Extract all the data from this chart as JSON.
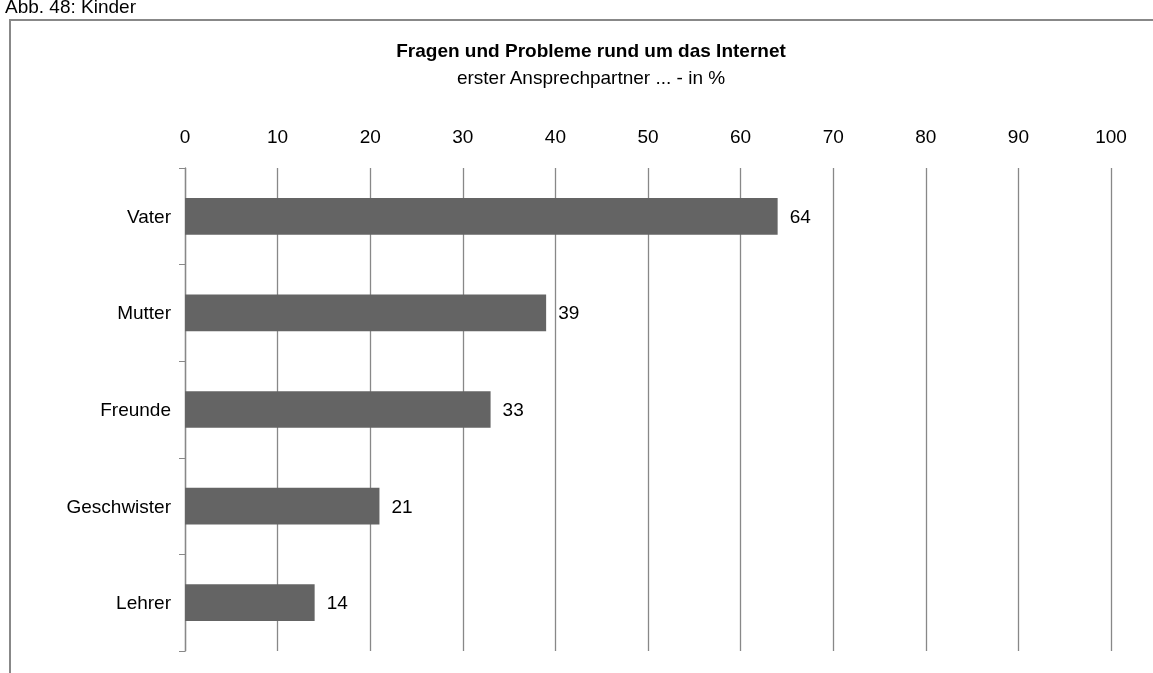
{
  "chart_data": {
    "type": "bar",
    "orientation": "horizontal",
    "title": "Fragen und Probleme rund um das Internet",
    "subtitle": "erster Ansprechpartner ... - in %",
    "annotations": [
      "Abb. 48: Kinder"
    ],
    "categories": [
      "Vater",
      "Mutter",
      "Freunde",
      "Geschwister",
      "Lehrer"
    ],
    "values": [
      64,
      39,
      33,
      21,
      14
    ],
    "color": "#646464",
    "xlim": [
      0,
      100
    ],
    "xticks": [
      0,
      10,
      20,
      30,
      40,
      50,
      60,
      70,
      80,
      90,
      100
    ],
    "grid": "x",
    "data_labels": true
  }
}
